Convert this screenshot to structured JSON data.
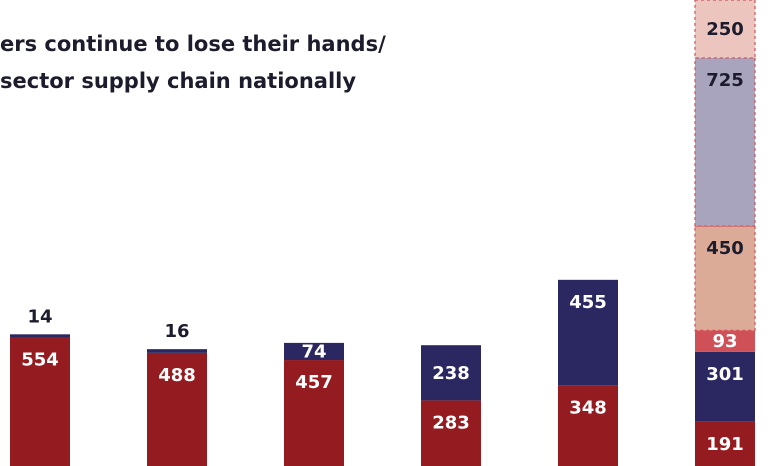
{
  "title_lines": [
    "ers continue to lose their hands/",
    "sector supply chain nationally"
  ],
  "colors": {
    "red": "#941b1f",
    "navy": "#2b2760",
    "pink": "#edc5bf",
    "lavender": "#a8a4bd",
    "tan": "#dcab98",
    "coral": "#d05058",
    "white_label": "#ffffff",
    "dark_label": "#1c1c2c"
  },
  "chart_data": {
    "type": "bar",
    "stacked": true,
    "ylim": [
      0,
      2010
    ],
    "bars": [
      {
        "segments": [
          {
            "value": 554,
            "color": "red",
            "label": "554"
          },
          {
            "value": 14,
            "color": "navy",
            "label": "14",
            "label_outside": true
          }
        ]
      },
      {
        "segments": [
          {
            "value": 488,
            "color": "red",
            "label": "488"
          },
          {
            "value": 16,
            "color": "navy",
            "label": "16",
            "label_outside": true
          }
        ]
      },
      {
        "segments": [
          {
            "value": 457,
            "color": "red",
            "label": "457"
          },
          {
            "value": 74,
            "color": "navy",
            "label": "74"
          }
        ]
      },
      {
        "segments": [
          {
            "value": 283,
            "color": "red",
            "label": "283"
          },
          {
            "value": 238,
            "color": "navy",
            "label": "238"
          }
        ]
      },
      {
        "segments": [
          {
            "value": 348,
            "color": "red",
            "label": "348"
          },
          {
            "value": 455,
            "color": "navy",
            "label": "455"
          }
        ]
      },
      {
        "segments": [
          {
            "value": 191,
            "color": "red",
            "label": "191"
          },
          {
            "value": 301,
            "color": "navy",
            "label": "301"
          },
          {
            "value": 93,
            "color": "coral",
            "label": "93"
          },
          {
            "value": 450,
            "color": "tan",
            "label": "450",
            "dashed": true
          },
          {
            "value": 725,
            "color": "lavender",
            "label": "725",
            "dashed": true
          },
          {
            "value": 250,
            "color": "pink",
            "label": "250",
            "dashed": true
          }
        ]
      }
    ]
  }
}
